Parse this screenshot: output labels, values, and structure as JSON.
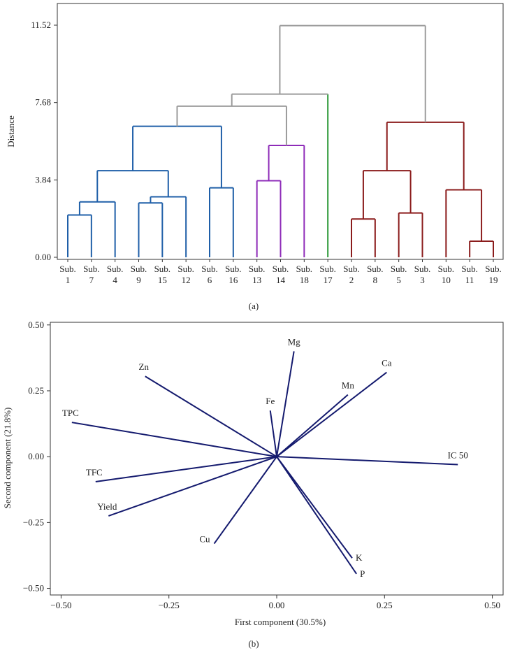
{
  "chart_data": [
    {
      "type": "dendrogram",
      "panel_label": "(a)",
      "ylabel": "Distance",
      "ylim": [
        0,
        12.0
      ],
      "yticks": [
        {
          "value": 0.0,
          "label": "0.00"
        },
        {
          "value": 3.84,
          "label": "3.84"
        },
        {
          "value": 7.68,
          "label": "7.68"
        },
        {
          "value": 11.52,
          "label": "11.52"
        }
      ],
      "leaves": [
        {
          "prefix": "Sub.",
          "number": "1"
        },
        {
          "prefix": "Sub.",
          "number": "7"
        },
        {
          "prefix": "Sub.",
          "number": "4"
        },
        {
          "prefix": "Sub.",
          "number": "9"
        },
        {
          "prefix": "Sub.",
          "number": "15"
        },
        {
          "prefix": "Sub.",
          "number": "12"
        },
        {
          "prefix": "Sub.",
          "number": "6"
        },
        {
          "prefix": "Sub.",
          "number": "16"
        },
        {
          "prefix": "Sub.",
          "number": "13"
        },
        {
          "prefix": "Sub.",
          "number": "14"
        },
        {
          "prefix": "Sub.",
          "number": "18"
        },
        {
          "prefix": "Sub.",
          "number": "17"
        },
        {
          "prefix": "Sub.",
          "number": "2"
        },
        {
          "prefix": "Sub.",
          "number": "8"
        },
        {
          "prefix": "Sub.",
          "number": "5"
        },
        {
          "prefix": "Sub.",
          "number": "3"
        },
        {
          "prefix": "Sub.",
          "number": "10"
        },
        {
          "prefix": "Sub.",
          "number": "11"
        },
        {
          "prefix": "Sub.",
          "number": "19"
        }
      ],
      "merges": [
        {
          "id": "m1",
          "left": 0,
          "right": 1,
          "height": 2.1,
          "color": "#1f5fa8"
        },
        {
          "id": "m2",
          "left": "m1",
          "right": 2,
          "height": 2.75,
          "color": "#1f5fa8"
        },
        {
          "id": "m3",
          "left": 3,
          "right": 4,
          "height": 2.7,
          "color": "#1f5fa8"
        },
        {
          "id": "m4",
          "left": "m3",
          "right": 5,
          "height": 3.0,
          "color": "#1f5fa8"
        },
        {
          "id": "m5",
          "left": "m2",
          "right": "m4",
          "height": 4.3,
          "color": "#1f5fa8"
        },
        {
          "id": "m6",
          "left": 6,
          "right": 7,
          "height": 3.45,
          "color": "#1f5fa8"
        },
        {
          "id": "m7",
          "left": "m5",
          "right": "m6",
          "height": 6.5,
          "color": "#1f5fa8"
        },
        {
          "id": "m8",
          "left": 8,
          "right": 9,
          "height": 3.8,
          "color": "#8e2bb8"
        },
        {
          "id": "m9",
          "left": "m8",
          "right": 10,
          "height": 5.55,
          "color": "#8e2bb8"
        },
        {
          "id": "m10",
          "left": "m7",
          "right": "m9",
          "height": 7.5,
          "color": "#9b9b9b"
        },
        {
          "id": "m11",
          "left": "m10",
          "right": 11,
          "height": 8.1,
          "color": "#9b9b9b",
          "right_color": "#2e9a3a"
        },
        {
          "id": "m12",
          "left": 12,
          "right": 13,
          "height": 1.9,
          "color": "#8b1c1c"
        },
        {
          "id": "m13",
          "left": 14,
          "right": 15,
          "height": 2.2,
          "color": "#8b1c1c"
        },
        {
          "id": "m14",
          "left": "m12",
          "right": "m13",
          "height": 4.3,
          "color": "#8b1c1c"
        },
        {
          "id": "m15",
          "left": 17,
          "right": 18,
          "height": 0.8,
          "color": "#8b1c1c"
        },
        {
          "id": "m16",
          "left": 16,
          "right": "m15",
          "height": 3.35,
          "color": "#8b1c1c"
        },
        {
          "id": "m17",
          "left": "m14",
          "right": "m16",
          "height": 6.7,
          "color": "#8b1c1c"
        },
        {
          "id": "m18",
          "left": "m11",
          "right": "m17",
          "height": 11.5,
          "color": "#9b9b9b"
        }
      ]
    },
    {
      "type": "biplot",
      "panel_label": "(b)",
      "xlabel": "First component (30.5%)",
      "ylabel": "Second component (21.8%)",
      "xlim": [
        -0.525,
        0.525
      ],
      "ylim": [
        -0.525,
        0.51
      ],
      "xticks": [
        {
          "value": -0.5,
          "label": "−0.50"
        },
        {
          "value": -0.25,
          "label": "−0.25"
        },
        {
          "value": 0.0,
          "label": "0.00"
        },
        {
          "value": 0.25,
          "label": "0.25"
        },
        {
          "value": 0.5,
          "label": "0.50"
        }
      ],
      "yticks": [
        {
          "value": 0.5,
          "label": "0.50"
        },
        {
          "value": 0.25,
          "label": "0.25"
        },
        {
          "value": 0.0,
          "label": "0.00"
        },
        {
          "value": -0.25,
          "label": "−0.25"
        },
        {
          "value": -0.5,
          "label": "−0.50"
        }
      ],
      "vector_color": "#141a6e",
      "vectors": [
        {
          "name": "Mg",
          "x": 0.04,
          "y": 0.4,
          "label_pos": "above"
        },
        {
          "name": "Ca",
          "x": 0.255,
          "y": 0.32,
          "label_pos": "above"
        },
        {
          "name": "Mn",
          "x": 0.165,
          "y": 0.235,
          "label_pos": "above"
        },
        {
          "name": "Fe",
          "x": -0.015,
          "y": 0.175,
          "label_pos": "above"
        },
        {
          "name": "Zn",
          "x": -0.305,
          "y": 0.305,
          "label_pos": "above"
        },
        {
          "name": "TPC",
          "x": -0.475,
          "y": 0.13,
          "label_pos": "above"
        },
        {
          "name": "TFC",
          "x": -0.42,
          "y": -0.095,
          "label_pos": "above"
        },
        {
          "name": "Yield",
          "x": -0.39,
          "y": -0.225,
          "label_pos": "above"
        },
        {
          "name": "IC 50",
          "x": 0.42,
          "y": -0.03,
          "label_pos": "above"
        },
        {
          "name": "Cu",
          "x": -0.145,
          "y": -0.33,
          "label_pos": "left"
        },
        {
          "name": "K",
          "x": 0.175,
          "y": -0.385,
          "label_pos": "right"
        },
        {
          "name": "P",
          "x": 0.185,
          "y": -0.445,
          "label_pos": "right"
        }
      ]
    }
  ]
}
